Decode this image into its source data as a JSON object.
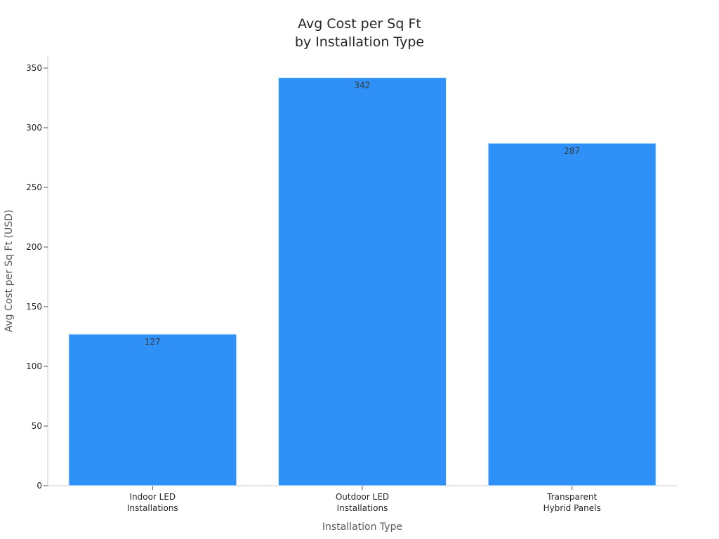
{
  "chart_data": {
    "type": "bar",
    "title_lines": [
      "Avg Cost per Sq Ft",
      "by Installation Type"
    ],
    "xlabel": "Installation Type",
    "ylabel": "Avg Cost per Sq Ft (USD)",
    "categories": [
      [
        "Indoor LED",
        "Installations"
      ],
      [
        "Outdoor LED",
        "Installations"
      ],
      [
        "Transparent",
        "Hybrid Panels"
      ]
    ],
    "values": [
      127,
      342,
      287
    ],
    "data_labels": [
      "127",
      "342",
      "287"
    ],
    "ylim": [
      0,
      360
    ],
    "yticks": [
      0,
      50,
      100,
      150,
      200,
      250,
      300,
      350
    ],
    "ytick_labels": [
      "0",
      "50",
      "100",
      "150",
      "200",
      "250",
      "300",
      "350"
    ],
    "grid": false,
    "legend": "none",
    "bar_color": "#2f91f7",
    "bar_edge_color": "#d9ecff"
  }
}
